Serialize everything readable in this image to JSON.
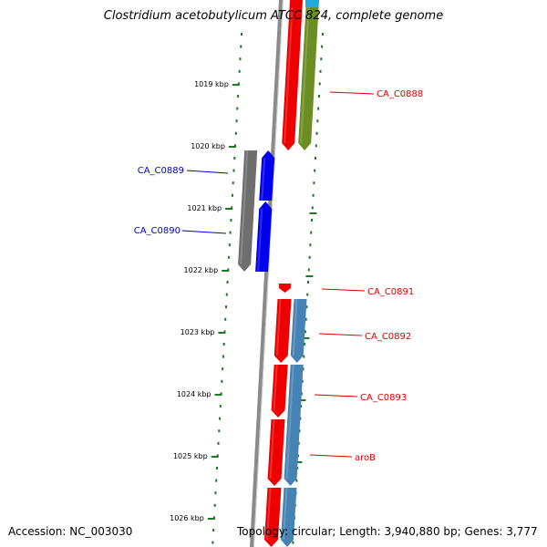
{
  "title": "Clostridium acetobutylicum ATCC 824, complete genome",
  "footer": {
    "accession": "Accession: NC_003030",
    "summary": "Topology: circular; Length: 3,940,880 bp; Genes: 3,777"
  },
  "colors": {
    "backbone": "#8a8a8a",
    "tick": "#1e7a1e",
    "forward_label": "#dd0000",
    "reverse_label": "#0000cc",
    "gene_red": "#ee0000",
    "gene_olive": "#6b8e23",
    "gene_gray": "#6e6e6e",
    "gene_blue": "#0000ee",
    "gene_steel": "#4682b4",
    "gene_cyan": "#22aadd"
  },
  "scale": {
    "unit": "kbp",
    "major_ticks": [
      "1019 kbp",
      "1020 kbp",
      "1021 kbp",
      "1022 kbp",
      "1023 kbp",
      "1024 kbp",
      "1025 kbp",
      "1026 kbp"
    ]
  },
  "gene_labels": [
    {
      "text": "CA_C0888",
      "side": "right"
    },
    {
      "text": "CA_C0889",
      "side": "left"
    },
    {
      "text": "CA_C0890",
      "side": "left"
    },
    {
      "text": "CA_C0891",
      "side": "right"
    },
    {
      "text": "CA_C0892",
      "side": "right"
    },
    {
      "text": "CA_C0893",
      "side": "right"
    },
    {
      "text": "aroB",
      "side": "right"
    }
  ]
}
